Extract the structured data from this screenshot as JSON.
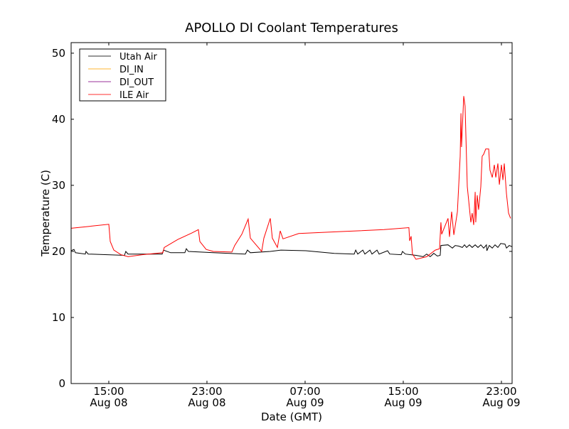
{
  "chart_data": {
    "type": "line",
    "title": "APOLLO DI Coolant Temperatures",
    "xlabel": "Date (GMT)",
    "ylabel": "Temperature (C)",
    "x_units": "hours since Aug 08 00:00 GMT",
    "xlim": [
      11.93,
      47.87
    ],
    "ylim": [
      0,
      51.6
    ],
    "grid": false,
    "legend_position": "top-left",
    "yticks": [
      0,
      10,
      20,
      30,
      40,
      50
    ],
    "xticks": [
      {
        "value": 15,
        "time": "15:00",
        "date": "Aug 08"
      },
      {
        "value": 23,
        "time": "23:00",
        "date": "Aug 08"
      },
      {
        "value": 31,
        "time": "07:00",
        "date": "Aug 09"
      },
      {
        "value": 39,
        "time": "15:00",
        "date": "Aug 09"
      },
      {
        "value": 47,
        "time": "23:00",
        "date": "Aug 09"
      }
    ],
    "series": [
      {
        "name": "Utah Air",
        "color": "#000000",
        "points": [
          [
            11.93,
            20.1
          ],
          [
            12.16,
            20.3
          ],
          [
            12.28,
            19.8
          ],
          [
            13.09,
            19.6
          ],
          [
            13.14,
            20.0
          ],
          [
            13.32,
            19.6
          ],
          [
            16.28,
            19.4
          ],
          [
            16.39,
            20.0
          ],
          [
            16.57,
            19.6
          ],
          [
            19.35,
            19.6
          ],
          [
            19.46,
            20.2
          ],
          [
            20.04,
            19.8
          ],
          [
            21.2,
            19.8
          ],
          [
            21.32,
            20.4
          ],
          [
            21.49,
            20.0
          ],
          [
            23.52,
            19.8
          ],
          [
            26.13,
            19.6
          ],
          [
            26.3,
            20.2
          ],
          [
            26.54,
            19.8
          ],
          [
            28.16,
            20.0
          ],
          [
            29.03,
            20.2
          ],
          [
            31.06,
            20.1
          ],
          [
            33.38,
            19.7
          ],
          [
            35.0,
            19.6
          ],
          [
            35.12,
            20.2
          ],
          [
            35.29,
            19.6
          ],
          [
            35.7,
            20.2
          ],
          [
            35.87,
            19.6
          ],
          [
            36.28,
            20.2
          ],
          [
            36.45,
            19.6
          ],
          [
            36.86,
            20.2
          ],
          [
            37.03,
            19.6
          ],
          [
            37.72,
            20.1
          ],
          [
            37.9,
            19.6
          ],
          [
            38.83,
            19.5
          ],
          [
            38.94,
            20.0
          ],
          [
            39.17,
            19.6
          ],
          [
            40.04,
            19.4
          ],
          [
            40.62,
            19.2
          ],
          [
            40.91,
            19.6
          ],
          [
            41.2,
            19.2
          ],
          [
            41.49,
            19.7
          ],
          [
            41.78,
            19.3
          ],
          [
            42.01,
            19.4
          ],
          [
            42.07,
            20.9
          ],
          [
            42.65,
            21.0
          ],
          [
            43.0,
            20.5
          ],
          [
            43.23,
            20.9
          ],
          [
            43.52,
            20.8
          ],
          [
            43.81,
            20.6
          ],
          [
            43.99,
            21.0
          ],
          [
            44.16,
            20.6
          ],
          [
            44.39,
            21.0
          ],
          [
            44.62,
            20.6
          ],
          [
            44.86,
            21.0
          ],
          [
            45.09,
            20.6
          ],
          [
            45.32,
            21.0
          ],
          [
            45.55,
            20.5
          ],
          [
            45.78,
            21.0
          ],
          [
            45.81,
            20.1
          ],
          [
            46.01,
            20.9
          ],
          [
            46.25,
            20.5
          ],
          [
            46.48,
            21.0
          ],
          [
            46.71,
            20.6
          ],
          [
            46.94,
            21.2
          ],
          [
            47.29,
            21.1
          ],
          [
            47.41,
            20.5
          ],
          [
            47.64,
            20.9
          ],
          [
            47.87,
            20.7
          ]
        ]
      },
      {
        "name": "DI_IN",
        "color": "#ffa500",
        "points": []
      },
      {
        "name": "DI_OUT",
        "color": "#800080",
        "points": []
      },
      {
        "name": "ILE Air",
        "color": "#ff0000",
        "points": [
          [
            11.93,
            23.5
          ],
          [
            15.0,
            24.1
          ],
          [
            15.12,
            21.5
          ],
          [
            15.41,
            20.2
          ],
          [
            15.99,
            19.5
          ],
          [
            16.57,
            19.2
          ],
          [
            17.72,
            19.5
          ],
          [
            19.41,
            19.8
          ],
          [
            19.52,
            20.6
          ],
          [
            20.62,
            21.8
          ],
          [
            21.78,
            22.8
          ],
          [
            22.3,
            23.3
          ],
          [
            22.42,
            21.5
          ],
          [
            22.94,
            20.3
          ],
          [
            23.52,
            20.0
          ],
          [
            25.03,
            19.9
          ],
          [
            25.26,
            20.9
          ],
          [
            25.84,
            22.6
          ],
          [
            26.36,
            24.9
          ],
          [
            26.54,
            22.0
          ],
          [
            27.0,
            21.0
          ],
          [
            27.46,
            20.0
          ],
          [
            27.64,
            22.0
          ],
          [
            28.16,
            25.0
          ],
          [
            28.33,
            22.0
          ],
          [
            28.74,
            20.6
          ],
          [
            28.97,
            23.1
          ],
          [
            29.2,
            21.9
          ],
          [
            30.48,
            22.7
          ],
          [
            33.96,
            23.0
          ],
          [
            37.43,
            23.3
          ],
          [
            39.46,
            23.6
          ],
          [
            39.52,
            21.6
          ],
          [
            39.64,
            22.3
          ],
          [
            39.75,
            19.6
          ],
          [
            40.04,
            18.8
          ],
          [
            40.91,
            19.2
          ],
          [
            41.61,
            20.2
          ],
          [
            41.96,
            20.4
          ],
          [
            42.07,
            24.4
          ],
          [
            42.13,
            22.6
          ],
          [
            42.65,
            25.0
          ],
          [
            42.77,
            22.2
          ],
          [
            42.94,
            26.0
          ],
          [
            43.12,
            22.5
          ],
          [
            43.41,
            26.0
          ],
          [
            43.64,
            34.4
          ],
          [
            43.7,
            40.9
          ],
          [
            43.75,
            35.8
          ],
          [
            43.93,
            43.5
          ],
          [
            44.04,
            42.0
          ],
          [
            44.22,
            29.8
          ],
          [
            44.51,
            24.4
          ],
          [
            44.62,
            25.8
          ],
          [
            44.74,
            24.0
          ],
          [
            44.86,
            29.0
          ],
          [
            44.91,
            24.4
          ],
          [
            45.03,
            28.5
          ],
          [
            45.14,
            26.3
          ],
          [
            45.32,
            29.8
          ],
          [
            45.43,
            34.4
          ],
          [
            45.55,
            34.7
          ],
          [
            45.72,
            35.5
          ],
          [
            45.96,
            35.5
          ],
          [
            46.07,
            32.3
          ],
          [
            46.25,
            31.2
          ],
          [
            46.42,
            33.1
          ],
          [
            46.54,
            31.2
          ],
          [
            46.71,
            33.3
          ],
          [
            46.83,
            30.1
          ],
          [
            47.0,
            33.1
          ],
          [
            47.12,
            30.8
          ],
          [
            47.23,
            33.3
          ],
          [
            47.41,
            28.7
          ],
          [
            47.58,
            25.8
          ],
          [
            47.75,
            25.0
          ]
        ]
      }
    ]
  }
}
